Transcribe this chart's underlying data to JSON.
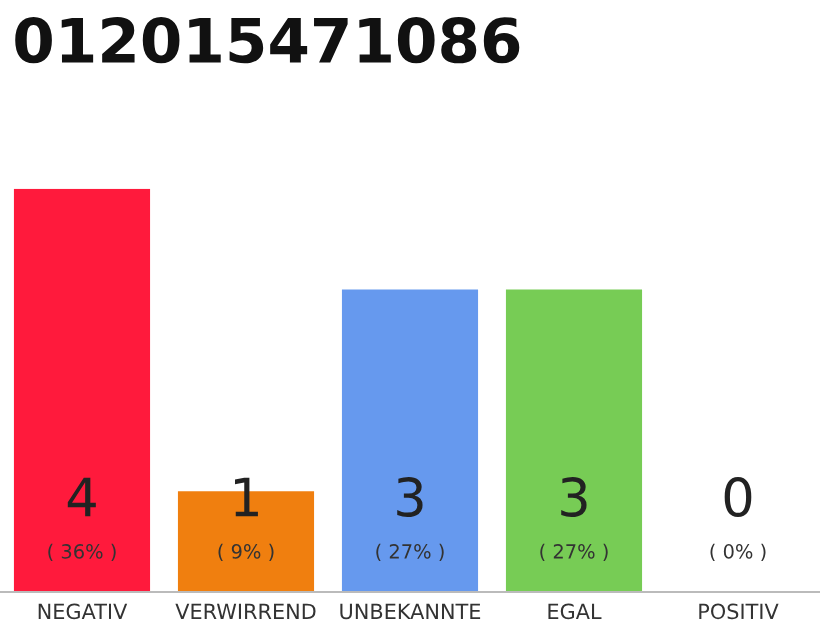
{
  "chart_data": {
    "type": "bar",
    "title": "012015471086",
    "categories": [
      "NEGATIV",
      "VERWIRREND",
      "UNBEKANNTE",
      "EGAL",
      "POSITIV"
    ],
    "values": [
      4,
      1,
      3,
      3,
      0
    ],
    "colors": [
      "#ff1a3c",
      "#f07f0f",
      "#6699ee",
      "#77cc55",
      "#cccccc"
    ],
    "ylim": [
      0,
      4
    ],
    "tick_labels": "x",
    "data_labels": true,
    "grid": false,
    "legend": false,
    "annotations": [
      {
        "text": "( 36% )",
        "x": "NEGATIV",
        "y": 0
      },
      {
        "text": "( 9% )",
        "x": "VERWIRREND",
        "y": 0
      },
      {
        "text": "( 27% )",
        "x": "UNBEKANNTE",
        "y": 0
      },
      {
        "text": "( 27% )",
        "x": "EGAL",
        "y": 0
      },
      {
        "text": "( 0% )",
        "x": "POSITIV",
        "y": 0
      }
    ]
  }
}
